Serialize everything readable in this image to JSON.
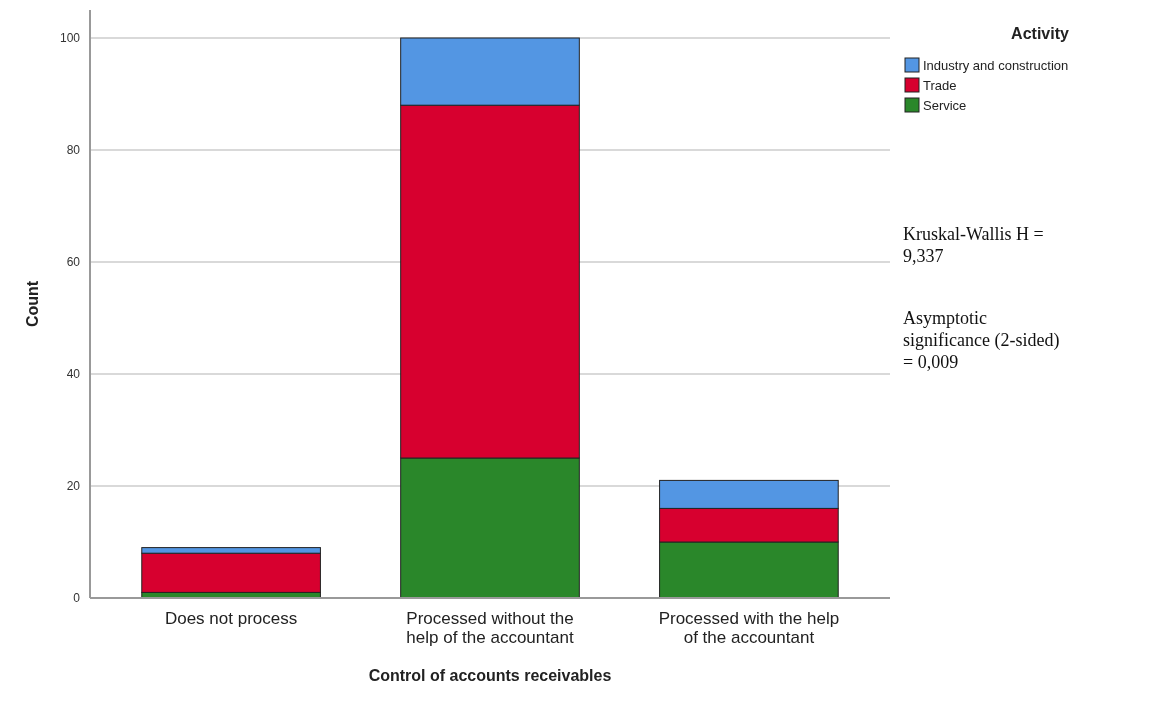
{
  "chart_data": {
    "type": "bar",
    "stacked": true,
    "xlabel": "Control of accounts receivables",
    "ylabel": "Count",
    "legend_title": "Activity",
    "legend": "top right",
    "categories": [
      "Does not process",
      "Processed without the help of the accountant",
      "Processed with the help of the accountant"
    ],
    "series": [
      {
        "name": "Service",
        "color": "#2a872a",
        "values": [
          1,
          25,
          10
        ]
      },
      {
        "name": "Trade",
        "color": "#d7002f",
        "values": [
          7,
          63,
          6
        ]
      },
      {
        "name": "Industry and construction",
        "color": "#5396e3",
        "values": [
          1,
          12,
          5
        ]
      }
    ],
    "ylim": [
      0,
      105
    ],
    "yticks": [
      0,
      20,
      40,
      60,
      80,
      100
    ],
    "grid": "y",
    "annotations": [
      "Kruskal-Wallis H = 9,337",
      "Asymptotic significance (2-sided) = 0,009"
    ]
  }
}
